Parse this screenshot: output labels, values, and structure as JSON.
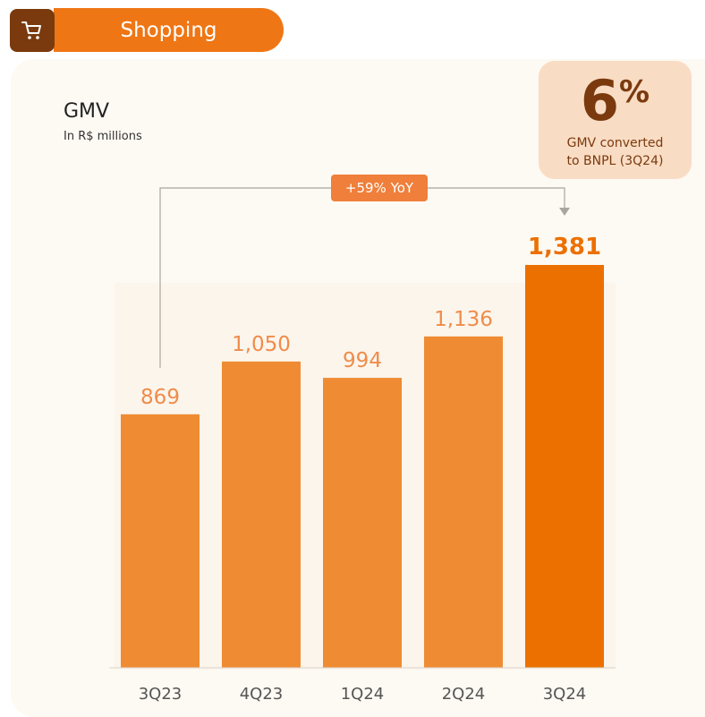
{
  "header": {
    "title": "Shopping",
    "icon": "shopping-cart-icon"
  },
  "stat_card": {
    "value": "6",
    "unit": "%",
    "caption_line1": "GMV converted",
    "caption_line2": "to BNPL (3Q24)"
  },
  "growth_label": "+59% YoY",
  "colors": {
    "bar": "#ef8c33",
    "highlight": "#ec7000",
    "label": "#ef8c4a",
    "highlight_label": "#ec7000",
    "tick": "#555555",
    "dark_brown": "#7a3a0e"
  },
  "chart_data": {
    "type": "bar",
    "title": "GMV",
    "subtitle": "In R$ millions",
    "categories": [
      "3Q23",
      "4Q23",
      "1Q24",
      "2Q24",
      "3Q24"
    ],
    "values": [
      869,
      1050,
      994,
      1136,
      1381
    ],
    "value_labels": [
      "869",
      "1,050",
      "994",
      "1,136",
      "1,381"
    ],
    "highlight_index": 4,
    "ylim": [
      0,
      1381
    ],
    "grid": false
  }
}
